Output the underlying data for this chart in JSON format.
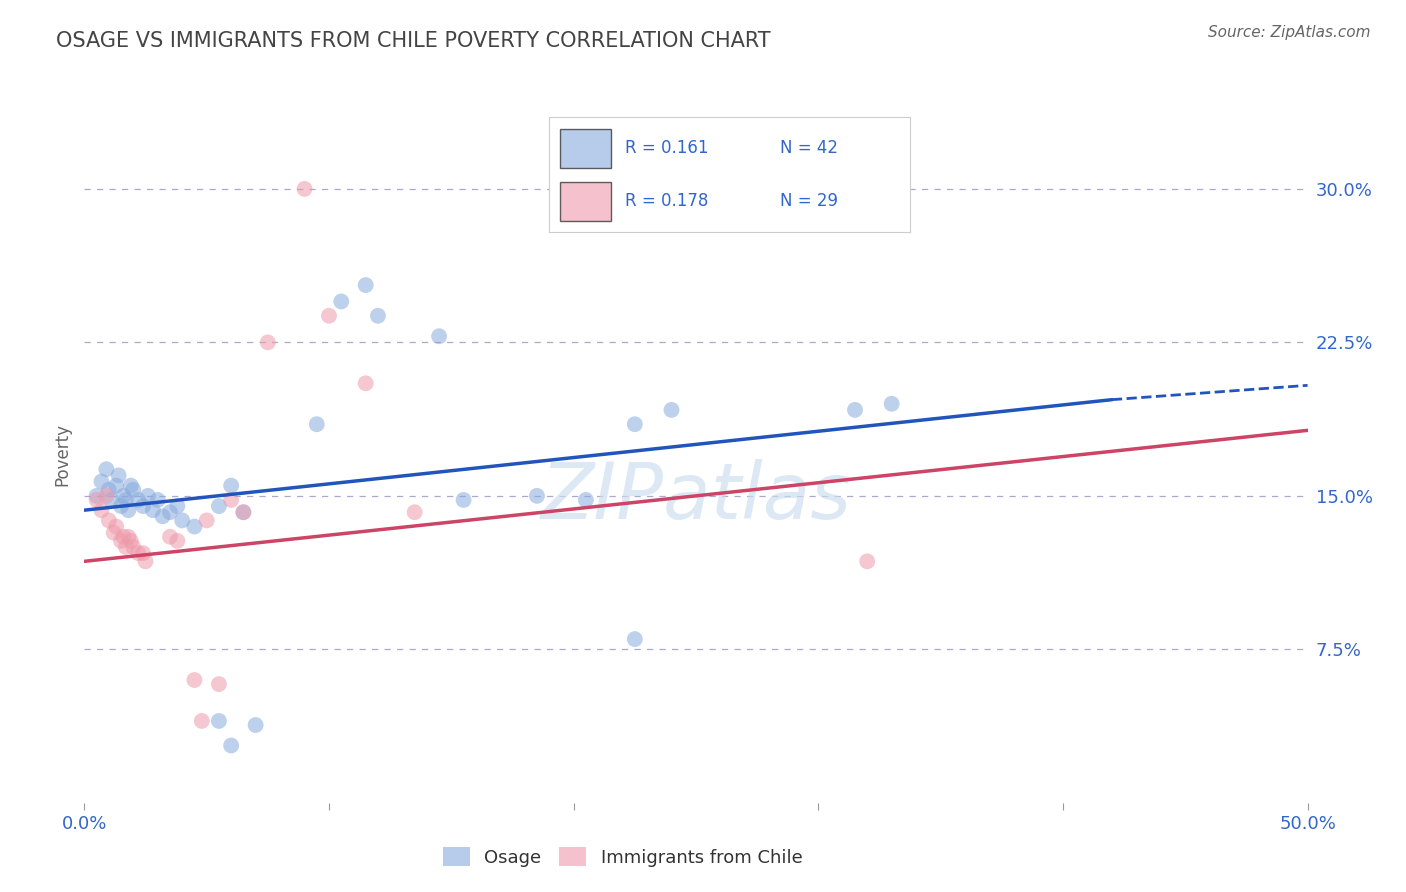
{
  "title": "OSAGE VS IMMIGRANTS FROM CHILE POVERTY CORRELATION CHART",
  "source": "Source: ZipAtlas.com",
  "ylabel": "Poverty",
  "xlim": [
    0.0,
    0.5
  ],
  "ylim": [
    0.0,
    0.34
  ],
  "yticks": [
    0.075,
    0.15,
    0.225,
    0.3
  ],
  "ytick_labels": [
    "7.5%",
    "15.0%",
    "22.5%",
    "30.0%"
  ],
  "watermark": "ZIPatlas",
  "legend_r1": "R = 0.161",
  "legend_n1": "N = 42",
  "legend_r2": "R = 0.178",
  "legend_n2": "N = 29",
  "blue_color": "#88AADD",
  "pink_color": "#EE99AA",
  "blue_line_color": "#2255BB",
  "pink_line_color": "#CC4466",
  "blue_scatter": [
    [
      0.005,
      0.15
    ],
    [
      0.007,
      0.157
    ],
    [
      0.009,
      0.163
    ],
    [
      0.01,
      0.153
    ],
    [
      0.011,
      0.148
    ],
    [
      0.013,
      0.155
    ],
    [
      0.014,
      0.16
    ],
    [
      0.015,
      0.145
    ],
    [
      0.016,
      0.15
    ],
    [
      0.017,
      0.148
    ],
    [
      0.018,
      0.143
    ],
    [
      0.019,
      0.155
    ],
    [
      0.02,
      0.153
    ],
    [
      0.022,
      0.148
    ],
    [
      0.024,
      0.145
    ],
    [
      0.026,
      0.15
    ],
    [
      0.028,
      0.143
    ],
    [
      0.03,
      0.148
    ],
    [
      0.032,
      0.14
    ],
    [
      0.035,
      0.142
    ],
    [
      0.038,
      0.145
    ],
    [
      0.04,
      0.138
    ],
    [
      0.045,
      0.135
    ],
    [
      0.055,
      0.145
    ],
    [
      0.06,
      0.155
    ],
    [
      0.065,
      0.142
    ],
    [
      0.095,
      0.185
    ],
    [
      0.105,
      0.245
    ],
    [
      0.115,
      0.253
    ],
    [
      0.12,
      0.238
    ],
    [
      0.145,
      0.228
    ],
    [
      0.155,
      0.148
    ],
    [
      0.185,
      0.15
    ],
    [
      0.205,
      0.148
    ],
    [
      0.225,
      0.185
    ],
    [
      0.24,
      0.192
    ],
    [
      0.315,
      0.192
    ],
    [
      0.33,
      0.195
    ],
    [
      0.225,
      0.08
    ],
    [
      0.055,
      0.04
    ],
    [
      0.07,
      0.038
    ],
    [
      0.06,
      0.028
    ]
  ],
  "pink_scatter": [
    [
      0.005,
      0.148
    ],
    [
      0.007,
      0.143
    ],
    [
      0.009,
      0.15
    ],
    [
      0.01,
      0.138
    ],
    [
      0.012,
      0.132
    ],
    [
      0.013,
      0.135
    ],
    [
      0.015,
      0.128
    ],
    [
      0.016,
      0.13
    ],
    [
      0.017,
      0.125
    ],
    [
      0.018,
      0.13
    ],
    [
      0.019,
      0.128
    ],
    [
      0.02,
      0.125
    ],
    [
      0.022,
      0.122
    ],
    [
      0.024,
      0.122
    ],
    [
      0.025,
      0.118
    ],
    [
      0.035,
      0.13
    ],
    [
      0.038,
      0.128
    ],
    [
      0.05,
      0.138
    ],
    [
      0.06,
      0.148
    ],
    [
      0.065,
      0.142
    ],
    [
      0.075,
      0.225
    ],
    [
      0.09,
      0.3
    ],
    [
      0.1,
      0.238
    ],
    [
      0.115,
      0.205
    ],
    [
      0.135,
      0.142
    ],
    [
      0.32,
      0.118
    ],
    [
      0.045,
      0.06
    ],
    [
      0.055,
      0.058
    ],
    [
      0.048,
      0.04
    ]
  ],
  "background_color": "#FFFFFF",
  "grid_color": "#AAAACC",
  "title_color": "#444444",
  "tick_color": "#3366CC",
  "title_fontsize": 15,
  "source_fontsize": 11,
  "scatter_size": 130
}
